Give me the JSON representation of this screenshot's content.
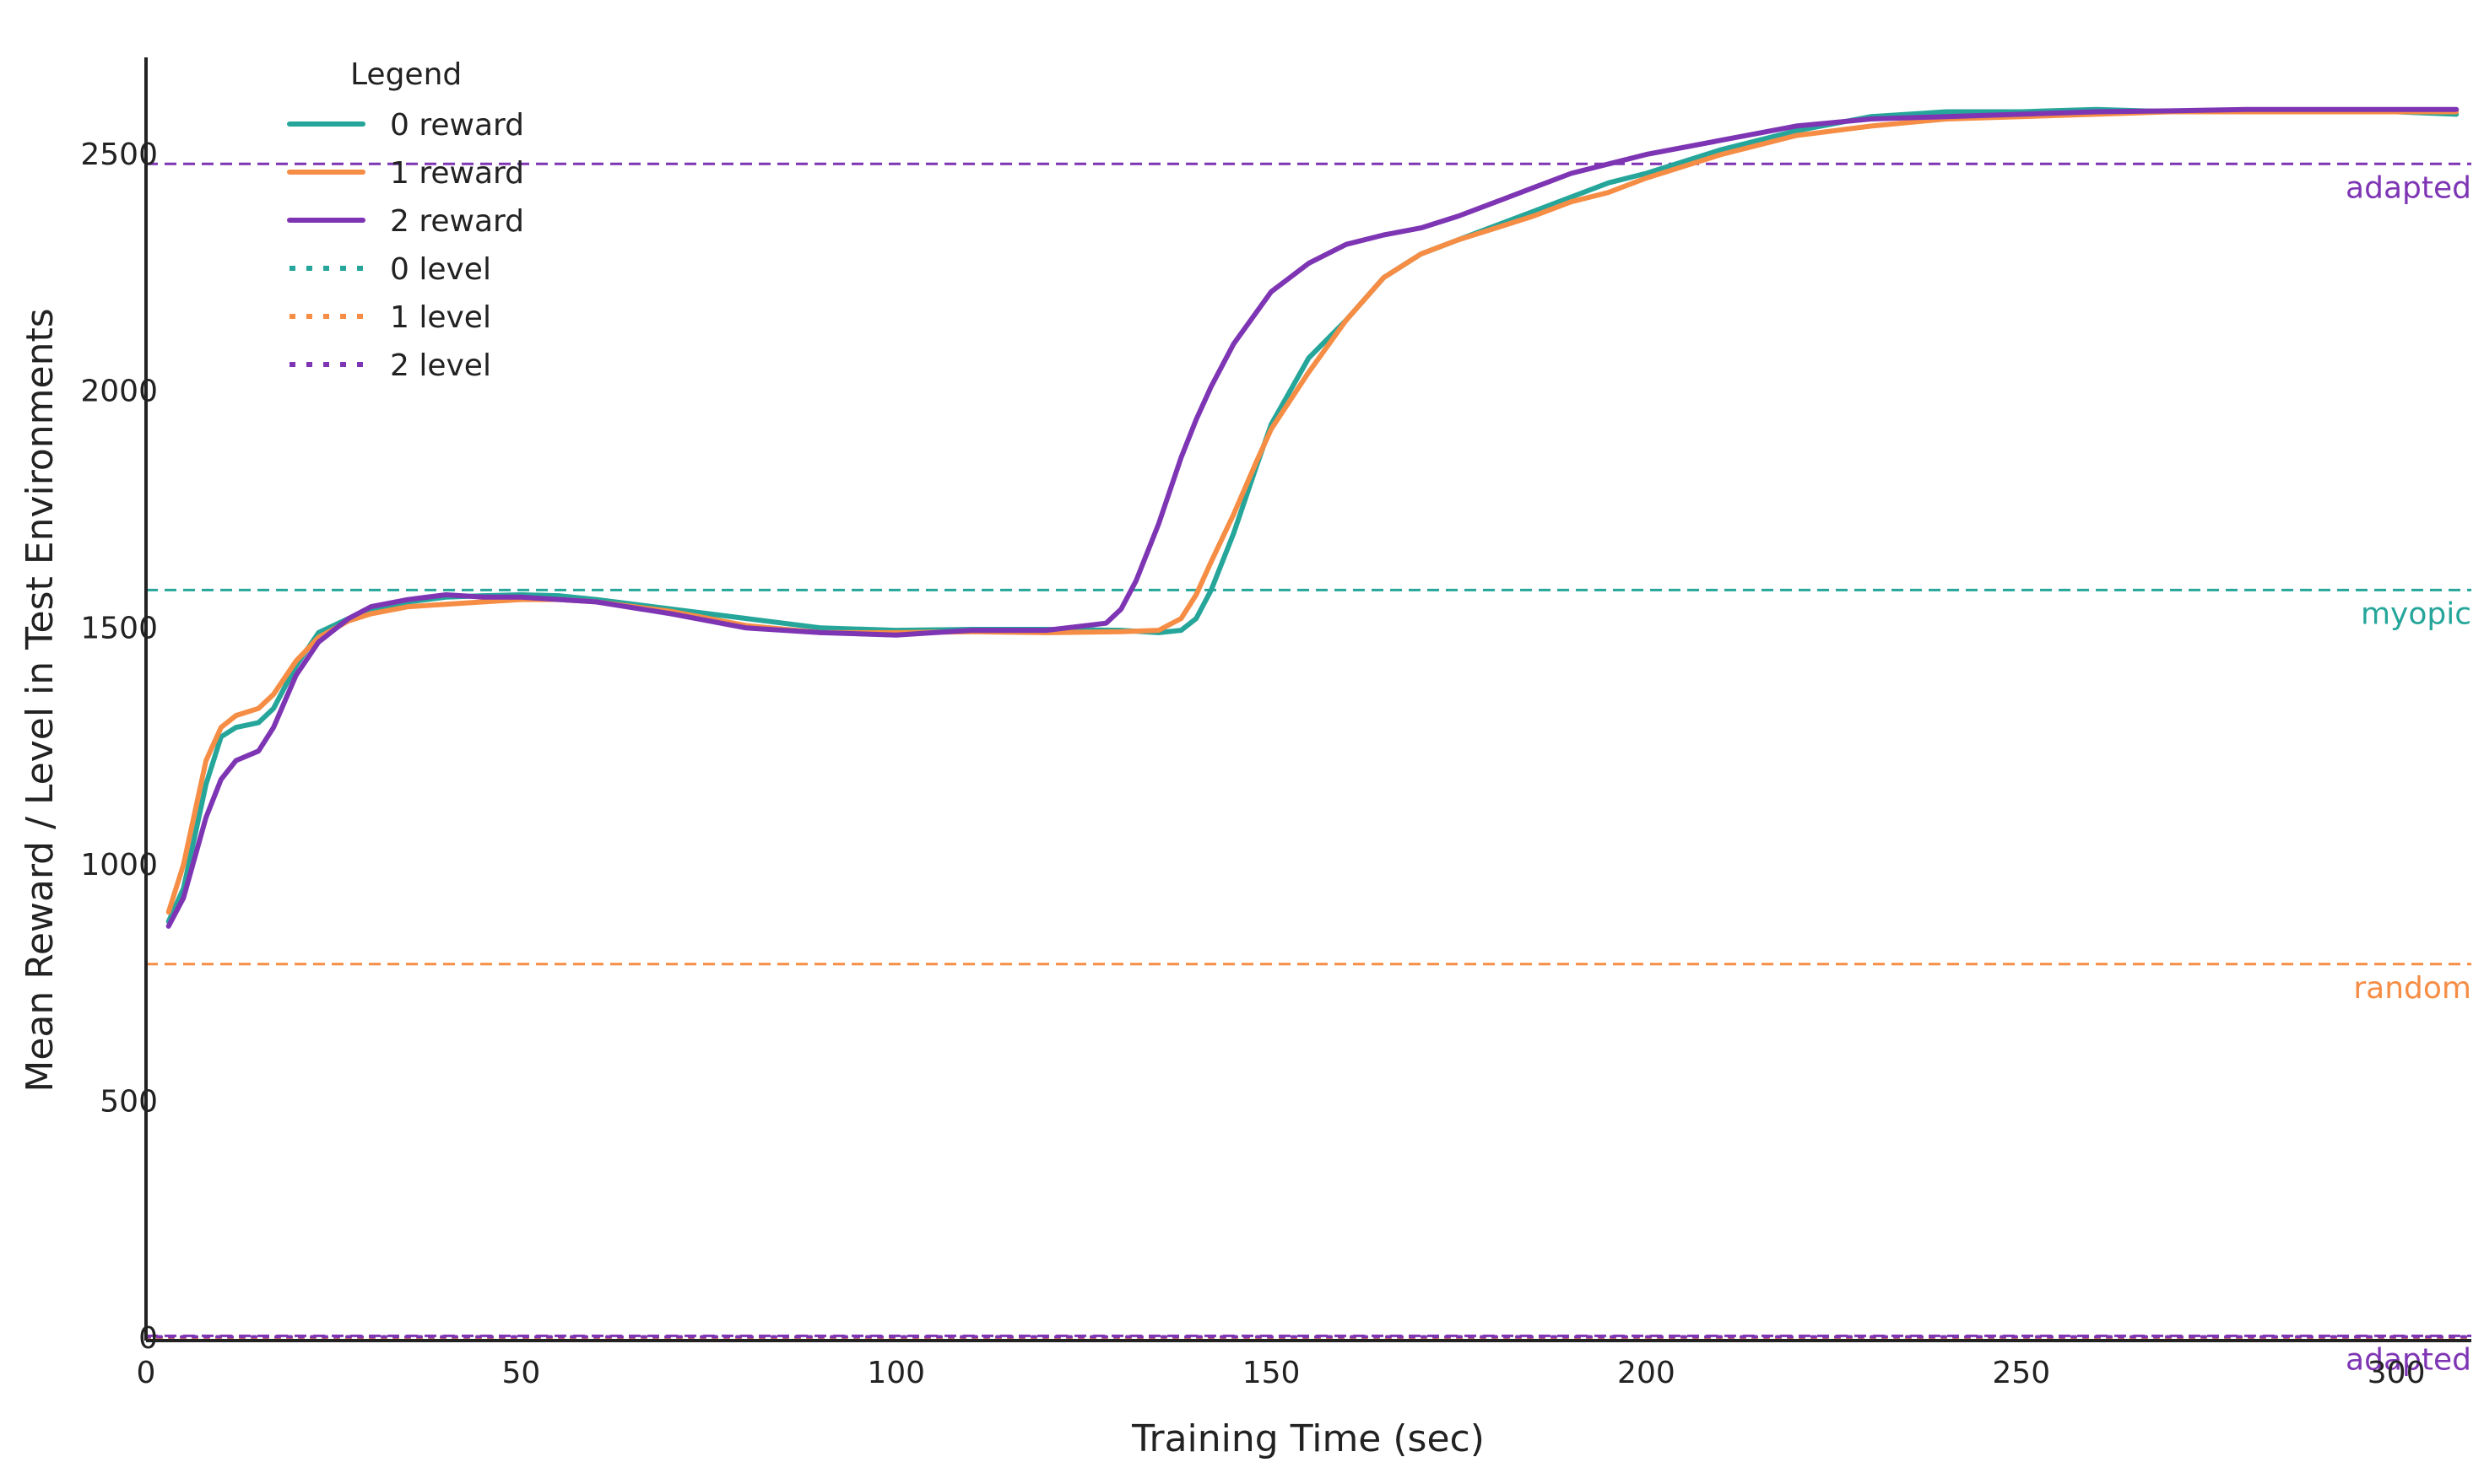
{
  "chart_data": {
    "type": "line",
    "title": "",
    "xlabel": "Training Time (sec)",
    "ylabel": "Mean Reward / Level in Test Environments",
    "xlim": [
      0,
      310
    ],
    "ylim": [
      -5,
      2705
    ],
    "xticks": [
      0,
      50,
      100,
      150,
      200,
      250,
      300
    ],
    "yticks": [
      0,
      500,
      1000,
      1500,
      2000,
      2500
    ],
    "grid": false,
    "legend": {
      "title": "Legend",
      "placement": "top-left",
      "entries": [
        {
          "label": "0 reward",
          "style": "solid",
          "color": "#26a69a"
        },
        {
          "label": "1 reward",
          "style": "solid",
          "color": "#f68d45"
        },
        {
          "label": "2 reward",
          "style": "solid",
          "color": "#7e35b4"
        },
        {
          "label": "0 level",
          "style": "dotted",
          "color": "#26a69a"
        },
        {
          "label": "1 level",
          "style": "dotted",
          "color": "#f68d45"
        },
        {
          "label": "2 level",
          "style": "dotted",
          "color": "#7e35b4"
        }
      ]
    },
    "reference_lines": [
      {
        "label": "adapted",
        "y": 2480,
        "color": "#7e35b4"
      },
      {
        "label": "myopic",
        "y": 1580,
        "color": "#26a69a"
      },
      {
        "label": "random",
        "y": 790,
        "color": "#f68d45"
      },
      {
        "label": "adapted",
        "y": 5,
        "color": "#7e35b4"
      }
    ],
    "series": [
      {
        "name": "0 reward",
        "color": "#26a69a",
        "style": "solid",
        "x": [
          3,
          5,
          8,
          10,
          12,
          15,
          17,
          20,
          23,
          27,
          30,
          35,
          40,
          45,
          50,
          55,
          60,
          70,
          80,
          90,
          100,
          110,
          120,
          130,
          135,
          138,
          140,
          142,
          145,
          148,
          150,
          155,
          160,
          165,
          170,
          175,
          180,
          185,
          190,
          195,
          200,
          210,
          220,
          230,
          240,
          250,
          260,
          270,
          280,
          290,
          300,
          308
        ],
        "y": [
          880,
          950,
          1170,
          1270,
          1290,
          1300,
          1330,
          1420,
          1490,
          1520,
          1535,
          1555,
          1565,
          1568,
          1570,
          1568,
          1560,
          1540,
          1520,
          1500,
          1495,
          1497,
          1497,
          1495,
          1490,
          1495,
          1520,
          1580,
          1700,
          1840,
          1930,
          2070,
          2150,
          2240,
          2290,
          2320,
          2350,
          2380,
          2410,
          2440,
          2460,
          2510,
          2550,
          2580,
          2590,
          2590,
          2595,
          2590,
          2590,
          2590,
          2590,
          2585
        ]
      },
      {
        "name": "1 reward",
        "color": "#f68d45",
        "style": "solid",
        "x": [
          3,
          5,
          8,
          10,
          12,
          15,
          17,
          20,
          23,
          27,
          30,
          35,
          40,
          45,
          50,
          55,
          60,
          70,
          80,
          90,
          100,
          110,
          120,
          130,
          135,
          138,
          140,
          142,
          145,
          148,
          150,
          155,
          160,
          165,
          170,
          175,
          180,
          185,
          190,
          195,
          200,
          210,
          220,
          230,
          240,
          250,
          260,
          270,
          280,
          290,
          300,
          308
        ],
        "y": [
          900,
          1000,
          1220,
          1290,
          1315,
          1330,
          1360,
          1430,
          1480,
          1515,
          1530,
          1545,
          1550,
          1555,
          1560,
          1560,
          1555,
          1535,
          1505,
          1490,
          1490,
          1492,
          1490,
          1492,
          1495,
          1520,
          1570,
          1640,
          1740,
          1850,
          1920,
          2040,
          2150,
          2240,
          2290,
          2320,
          2345,
          2370,
          2400,
          2420,
          2450,
          2500,
          2540,
          2560,
          2575,
          2580,
          2585,
          2590,
          2590,
          2590,
          2590,
          2590
        ]
      },
      {
        "name": "2 reward",
        "color": "#7e35b4",
        "style": "solid",
        "x": [
          3,
          5,
          8,
          10,
          12,
          15,
          17,
          20,
          23,
          27,
          30,
          35,
          40,
          45,
          50,
          55,
          60,
          70,
          80,
          90,
          100,
          110,
          120,
          128,
          130,
          132,
          135,
          138,
          140,
          142,
          145,
          150,
          155,
          160,
          165,
          170,
          175,
          180,
          185,
          190,
          195,
          200,
          210,
          220,
          230,
          240,
          250,
          260,
          270,
          280,
          290,
          300,
          308
        ],
        "y": [
          870,
          930,
          1100,
          1180,
          1220,
          1240,
          1290,
          1400,
          1470,
          1520,
          1545,
          1560,
          1570,
          1565,
          1565,
          1560,
          1555,
          1530,
          1500,
          1490,
          1485,
          1495,
          1495,
          1510,
          1540,
          1600,
          1720,
          1860,
          1940,
          2010,
          2100,
          2210,
          2270,
          2310,
          2330,
          2345,
          2370,
          2400,
          2430,
          2460,
          2480,
          2500,
          2530,
          2560,
          2575,
          2580,
          2585,
          2590,
          2592,
          2595,
          2595,
          2595,
          2595
        ]
      },
      {
        "name": "0 level",
        "color": "#26a69a",
        "style": "dotted",
        "x": [
          0,
          310
        ],
        "y": [
          0,
          0
        ]
      },
      {
        "name": "1 level",
        "color": "#f68d45",
        "style": "dotted",
        "x": [
          0,
          310
        ],
        "y": [
          0,
          0
        ]
      },
      {
        "name": "2 level",
        "color": "#7e35b4",
        "style": "dotted",
        "x": [
          0,
          310
        ],
        "y": [
          3,
          3
        ]
      }
    ]
  }
}
